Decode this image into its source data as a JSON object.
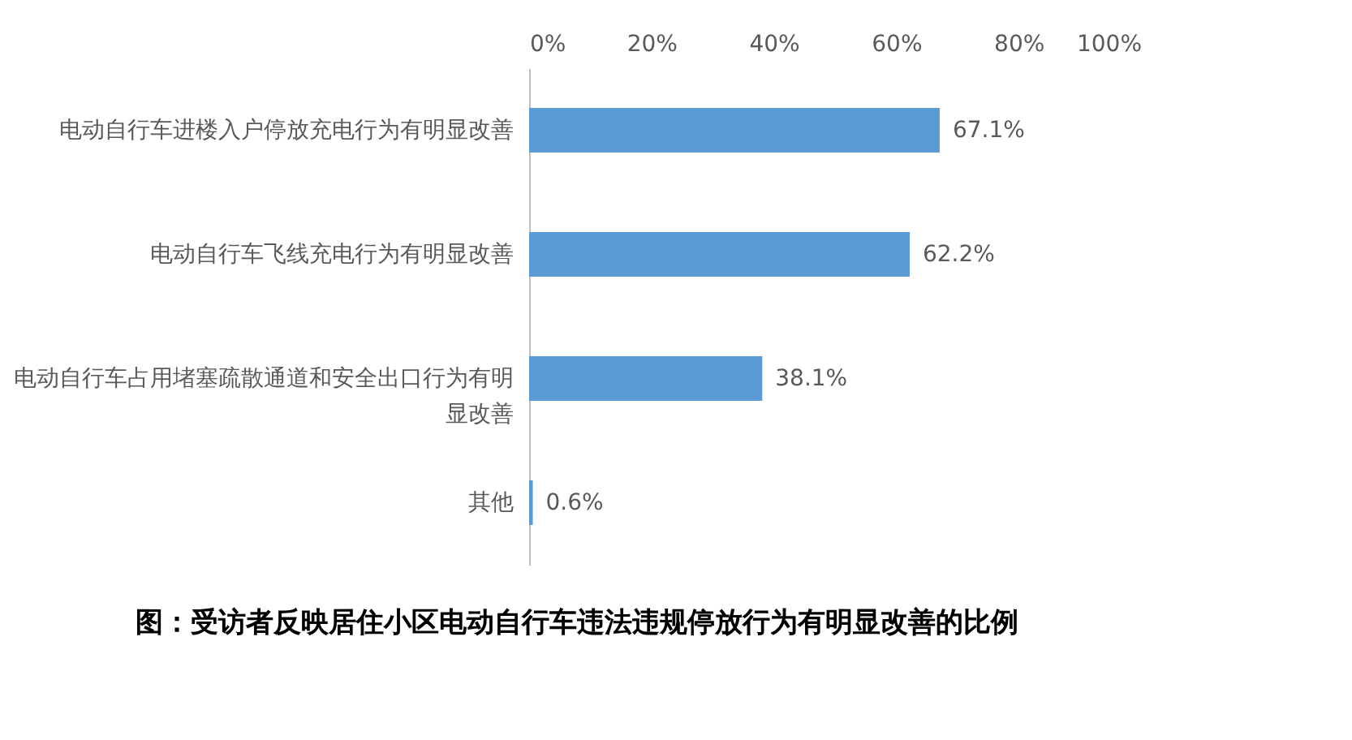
{
  "chart_data": {
    "type": "bar",
    "orientation": "horizontal",
    "title": "图：受访者反映居住小区电动自行车违法违规停放行为有明显改善的比例",
    "categories": [
      "电动自行车进楼入户停放充电行为有明显改善",
      "电动自行车飞线充电行为有明显改善",
      "电动自行车占用堵塞疏散通道和安全出口行为有明显改善",
      "其他"
    ],
    "values": [
      67.1,
      62.2,
      38.1,
      0.6
    ],
    "value_labels": [
      "67.1%",
      "62.2%",
      "38.1%",
      "0.6%"
    ],
    "color": "#5b9bd5",
    "xlim": [
      0,
      100
    ],
    "xticks": [
      {
        "value": 0,
        "label": "0%"
      },
      {
        "value": 20,
        "label": "20%"
      },
      {
        "value": 40,
        "label": "40%"
      },
      {
        "value": 60,
        "label": "60%"
      },
      {
        "value": 80,
        "label": "80%"
      },
      {
        "value": 100,
        "label": "100%"
      }
    ],
    "grid": false
  }
}
